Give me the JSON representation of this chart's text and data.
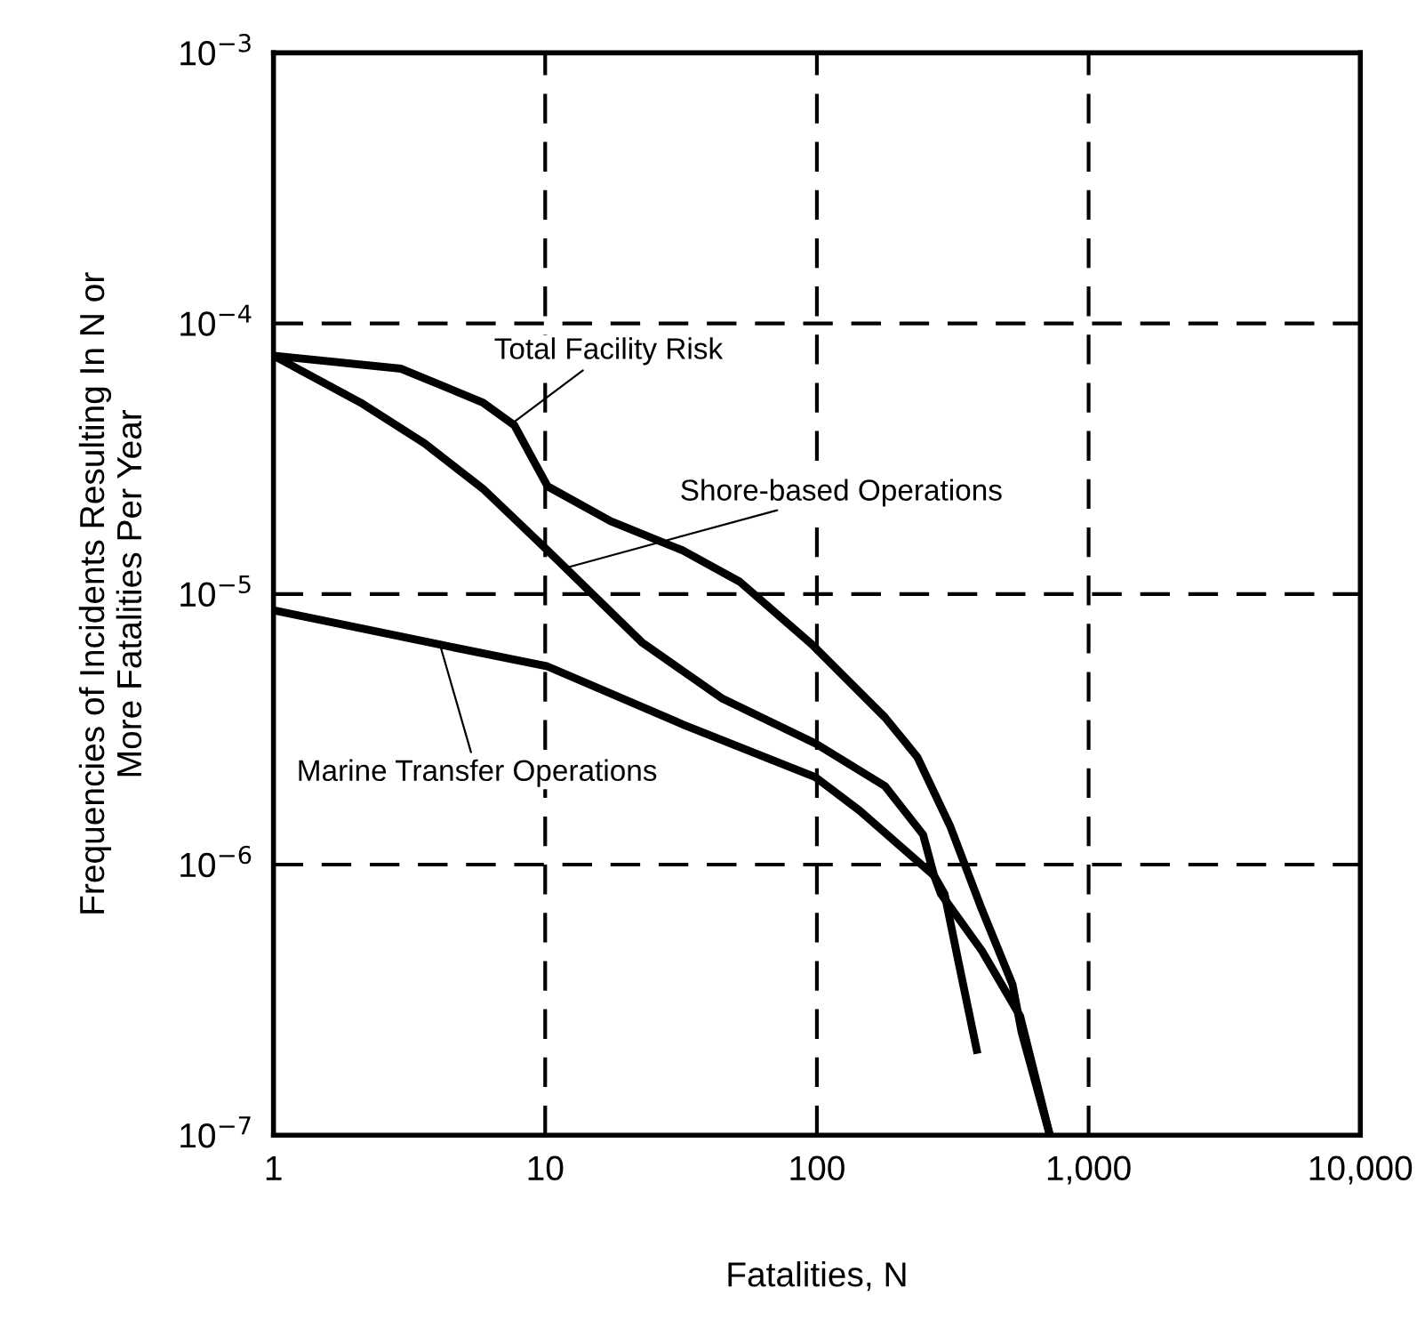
{
  "chart_data": {
    "type": "line",
    "xlabel": "Fatalities, N",
    "ylabel": "Frequencies of Incidents Resulting In N or\nMore Fatalities Per Year",
    "log": "xy",
    "grid": true,
    "marker": "none",
    "line_style": "solid",
    "xlim": [
      1,
      10000
    ],
    "ylim": [
      1e-07,
      0.001
    ],
    "xticks": [
      1,
      10,
      100,
      {
        "value": 1000,
        "label": "1,000"
      },
      {
        "value": 10000,
        "label": "10,000"
      }
    ],
    "yticks": [
      {
        "value": 1e-07,
        "label": "10$^{−7}$"
      },
      {
        "value": 1e-06,
        "label": "10$^{−6}$"
      },
      {
        "value": 1e-05,
        "label": "10$^{−5}$"
      },
      {
        "value": 0.0001,
        "label": "10$^{−4}$"
      },
      {
        "value": 0.001,
        "label": "10$^{−3}$"
      }
    ],
    "series": [
      {
        "color": "#000000",
        "x": [
          1,
          2.95,
          5.9,
          7.7,
          10.2,
          17.4,
          32,
          52,
          96,
          178,
          234,
          310,
          403,
          525,
          567,
          720
        ],
        "values": [
          7.6e-05,
          6.8e-05,
          5.1e-05,
          4.2e-05,
          2.5e-05,
          1.86e-05,
          1.45e-05,
          1.11e-05,
          6.5e-06,
          3.5e-06,
          2.5e-06,
          1.38e-06,
          6.9e-07,
          3.6e-07,
          2.4e-07,
          1e-07
        ]
      },
      {
        "color": "#000000",
        "x": [
          1,
          2.09,
          3.6,
          5.9,
          10.2,
          22.8,
          45,
          99,
          178,
          246,
          270,
          295,
          330,
          390
        ],
        "values": [
          7.6e-05,
          5.1e-05,
          3.6e-05,
          2.45e-05,
          1.45e-05,
          6.6e-06,
          4.1e-06,
          2.8e-06,
          1.95e-06,
          1.29e-06,
          9.1e-07,
          7.8e-07,
          4.5e-07,
          2e-07
        ]
      },
      {
        "color": "#000000",
        "x": [
          1,
          4.1,
          10.2,
          32,
          99,
          144,
          270,
          286,
          405,
          560,
          720
        ],
        "values": [
          8.7e-06,
          6.5e-06,
          5.4e-06,
          3.3e-06,
          2.1e-06,
          1.58e-06,
          9.1e-07,
          7.8e-07,
          4.8e-07,
          2.75e-07,
          1e-07
        ]
      }
    ],
    "annotations": [
      {
        "text": "Total Facility Risk",
        "x": 7.4,
        "y": 4.2e-05
      },
      {
        "text": "Shore-based Operations",
        "x": 12.3,
        "y": 1.26e-05
      },
      {
        "text": "Marine Transfer Operations",
        "x": 4.1,
        "y": 6.5e-06
      }
    ]
  }
}
